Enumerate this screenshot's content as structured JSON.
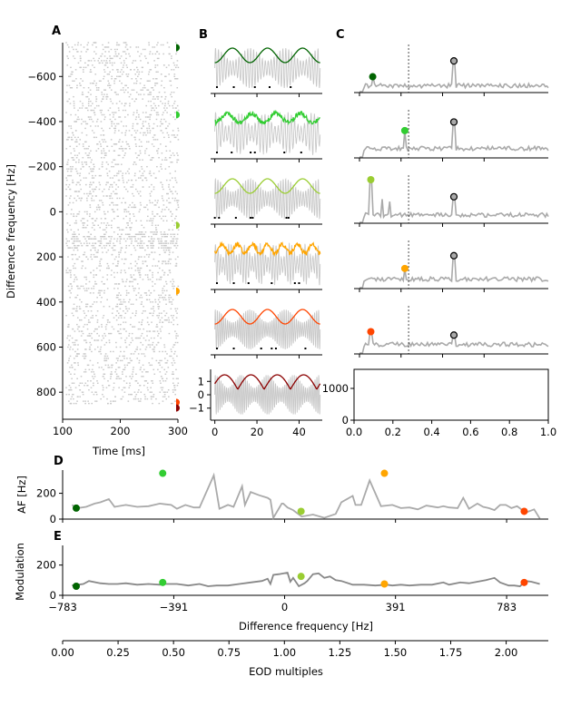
{
  "colors": {
    "cell_colors": [
      "#006400",
      "#32cd32",
      "#9acd32",
      "#ffa500",
      "#ff4500",
      "#8b0000"
    ],
    "trace_gray": "#aaaaaa",
    "raster_gray": "#c8c8c8",
    "peak_marker_fill": "#aaaaaa",
    "modulation_gray": "#888888"
  },
  "chart_data": [
    {
      "id": "A",
      "type": "scatter",
      "panel_letter": "A",
      "title": "",
      "xlabel": "Time [ms]",
      "ylabel": "Difference frequency [Hz]",
      "xlim": [
        100,
        300
      ],
      "ylim": [
        920,
        -750
      ],
      "y_inverted": true,
      "xticks": [
        100,
        200,
        300
      ],
      "yticks": [
        -600,
        -400,
        -200,
        0,
        200,
        400,
        600,
        800
      ],
      "ytick_labels": [
        "−600",
        "−400",
        "−200",
        "0",
        "200",
        "400",
        "600",
        "800"
      ],
      "raster": {
        "description": "spike raster, one row per difference frequency",
        "df_range": [
          -750,
          850
        ],
        "df_step": 10,
        "time_range": [
          105,
          300
        ],
        "dense_band": [
          100,
          160
        ]
      },
      "markers": [
        {
          "df": -728,
          "color_index": 0
        },
        {
          "df": -430,
          "color_index": 1
        },
        {
          "df": 60,
          "color_index": 2
        },
        {
          "df": 352,
          "color_index": 3
        },
        {
          "df": 845,
          "color_index": 4
        },
        {
          "df": 870,
          "color_index": 5
        }
      ]
    },
    {
      "id": "B",
      "type": "line",
      "panel_letter": "B",
      "xlabel": "",
      "ylabel": "",
      "xlim": [
        -2,
        51
      ],
      "xticks": [
        0,
        20,
        40
      ],
      "bottom_yticks": [
        1,
        0,
        -1
      ],
      "bottom_ytick_labels": [
        "1",
        "0",
        "−1"
      ],
      "bottom_ylim": [
        -1.9,
        1.9
      ],
      "rows": [
        {
          "color_index": 0,
          "beat_cycles": 3.0,
          "carrier_cycles": 36,
          "env_style": "smooth",
          "spikes_ms": [
            1,
            9,
            19,
            26,
            36
          ]
        },
        {
          "color_index": 1,
          "beat_cycles": 4.3,
          "carrier_cycles": 32,
          "env_style": "noisy",
          "spikes_ms": [
            1,
            8,
            17,
            19,
            33,
            41
          ]
        },
        {
          "color_index": 2,
          "beat_cycles": 3.0,
          "carrier_cycles": 42,
          "env_style": "smooth",
          "spikes_ms": [
            0,
            2,
            10,
            17,
            18,
            34,
            35
          ]
        },
        {
          "color_index": 3,
          "beat_cycles": 7.0,
          "carrier_cycles": 40,
          "env_style": "noisy",
          "spikes_ms": [
            1,
            9,
            16,
            27,
            38,
            40
          ]
        },
        {
          "color_index": 4,
          "beat_cycles": 3.0,
          "carrier_cycles": 52,
          "env_style": "smooth",
          "spikes_ms": [
            1,
            9,
            22,
            27,
            29,
            43
          ]
        },
        {
          "color_index": 5,
          "beat_cycles": 4.0,
          "carrier_cycles": 56,
          "env_style": "rectified",
          "spikes_ms": []
        }
      ]
    },
    {
      "id": "C",
      "type": "line",
      "panel_letter": "C",
      "xlabel": "",
      "ylabel": "",
      "xlim": [
        0,
        1000
      ],
      "vline_x": 260,
      "eod_peak_x": 500,
      "rows": [
        {
          "color_index": 0,
          "beat_peak_x": 70,
          "beat_peak_height": 0.35,
          "eod_peak_height": 0.72,
          "baseline": 0.12,
          "seed": 3
        },
        {
          "color_index": 1,
          "beat_peak_x": 240,
          "beat_peak_height": 0.62,
          "eod_peak_height": 0.82,
          "baseline": 0.18,
          "seed": 7
        },
        {
          "color_index": 2,
          "beat_peak_x": 60,
          "beat_peak_height": 1.0,
          "eod_peak_height": 0.6,
          "baseline": 0.15,
          "seed": 11
        },
        {
          "color_index": 3,
          "beat_peak_x": 240,
          "beat_peak_height": 0.45,
          "eod_peak_height": 0.75,
          "baseline": 0.18,
          "seed": 13
        },
        {
          "color_index": 4,
          "beat_peak_x": 60,
          "beat_peak_height": 0.5,
          "eod_peak_height": 0.42,
          "baseline": 0.18,
          "seed": 17
        }
      ],
      "empty_axes": {
        "xlim": [
          0.0,
          1.0
        ],
        "ylim": [
          0,
          1600
        ],
        "xticks": [
          0.0,
          0.2,
          0.4,
          0.6,
          0.8,
          1.0
        ],
        "xtick_labels": [
          "0.0",
          "0.2",
          "0.4",
          "0.6",
          "0.8",
          "1.0"
        ],
        "yticks": [
          0,
          1000
        ],
        "ytick_labels": [
          "0",
          "1000"
        ]
      }
    },
    {
      "id": "D",
      "type": "line",
      "panel_letter": "D",
      "xlabel": "",
      "ylabel": "AF [Hz]",
      "xlim": [
        -783,
        930
      ],
      "ylim": [
        0,
        380
      ],
      "yticks": [
        0,
        200
      ],
      "xticks": [
        -783,
        -391,
        0,
        391,
        783
      ],
      "series": [
        {
          "name": "AF",
          "x": [
            -750,
            -730,
            -700,
            -670,
            -650,
            -620,
            -600,
            -560,
            -520,
            -480,
            -440,
            -420,
            -400,
            -380,
            -350,
            -320,
            -300,
            -250,
            -230,
            -200,
            -180,
            -150,
            -140,
            -120,
            -90,
            -60,
            -50,
            -40,
            -10,
            -5,
            10,
            30,
            60,
            100,
            140,
            180,
            200,
            240,
            250,
            270,
            300,
            340,
            380,
            410,
            440,
            470,
            500,
            540,
            560,
            580,
            610,
            630,
            650,
            680,
            700,
            720,
            740,
            760,
            780,
            800,
            820,
            850,
            880,
            900
          ],
          "y": [
            110,
            85,
            95,
            120,
            130,
            155,
            95,
            110,
            95,
            100,
            120,
            115,
            110,
            80,
            110,
            90,
            90,
            340,
            80,
            110,
            95,
            255,
            110,
            210,
            185,
            165,
            150,
            10,
            120,
            120,
            90,
            70,
            20,
            35,
            10,
            40,
            130,
            180,
            110,
            110,
            300,
            100,
            110,
            85,
            90,
            75,
            105,
            90,
            100,
            90,
            85,
            165,
            80,
            120,
            95,
            85,
            70,
            110,
            110,
            85,
            100,
            50,
            75,
            5
          ]
        }
      ],
      "markers": [
        {
          "x": -735,
          "y": 85,
          "color_index": 0
        },
        {
          "x": -430,
          "y": 355,
          "color_index": 1
        },
        {
          "x": 58,
          "y": 60,
          "color_index": 2
        },
        {
          "x": 352,
          "y": 355,
          "color_index": 3
        },
        {
          "x": 845,
          "y": 60,
          "color_index": 4
        }
      ]
    },
    {
      "id": "E",
      "type": "line",
      "panel_letter": "E",
      "xlabel": "Difference frequency [Hz]",
      "ylabel": "Modulation",
      "xlim": [
        -783,
        930
      ],
      "ylim": [
        0,
        330
      ],
      "yticks": [
        0,
        200
      ],
      "xticks": [
        -783,
        -391,
        0,
        391,
        783
      ],
      "xtick_labels": [
        "−783",
        "−391",
        "0",
        "391",
        "783"
      ],
      "series": [
        {
          "name": "Modulation",
          "x": [
            -750,
            -710,
            -690,
            -650,
            -620,
            -590,
            -560,
            -520,
            -480,
            -440,
            -420,
            -380,
            -340,
            -300,
            -270,
            -240,
            -200,
            -160,
            -120,
            -80,
            -60,
            -50,
            -40,
            -20,
            10,
            20,
            30,
            50,
            70,
            80,
            100,
            120,
            140,
            160,
            180,
            200,
            240,
            280,
            320,
            360,
            380,
            410,
            440,
            480,
            520,
            560,
            580,
            620,
            650,
            680,
            710,
            740,
            760,
            790,
            810,
            830,
            850,
            870,
            900
          ],
          "y": [
            65,
            75,
            95,
            80,
            75,
            75,
            80,
            70,
            75,
            70,
            75,
            75,
            65,
            75,
            60,
            65,
            65,
            75,
            85,
            95,
            110,
            75,
            135,
            140,
            150,
            90,
            115,
            60,
            80,
            95,
            140,
            145,
            115,
            125,
            100,
            95,
            70,
            70,
            65,
            70,
            65,
            70,
            65,
            70,
            70,
            85,
            70,
            85,
            80,
            90,
            100,
            115,
            85,
            65,
            65,
            60,
            95,
            90,
            75
          ]
        }
      ],
      "markers": [
        {
          "x": -735,
          "y": 60,
          "color_index": 0
        },
        {
          "x": -430,
          "y": 85,
          "color_index": 1
        },
        {
          "x": 58,
          "y": 125,
          "color_index": 2
        },
        {
          "x": 352,
          "y": 75,
          "color_index": 3
        },
        {
          "x": 845,
          "y": 85,
          "color_index": 4
        }
      ]
    },
    {
      "id": "F",
      "type": "line",
      "panel_letter": "",
      "xlabel": "EOD multiples",
      "ylabel": "",
      "xlim": [
        0,
        2.19
      ],
      "xticks": [
        0.0,
        0.25,
        0.5,
        0.75,
        1.0,
        1.25,
        1.5,
        1.75,
        2.0
      ],
      "xtick_labels": [
        "0.00",
        "0.25",
        "0.50",
        "0.75",
        "1.00",
        "1.25",
        "1.50",
        "1.75",
        "2.00"
      ]
    }
  ]
}
